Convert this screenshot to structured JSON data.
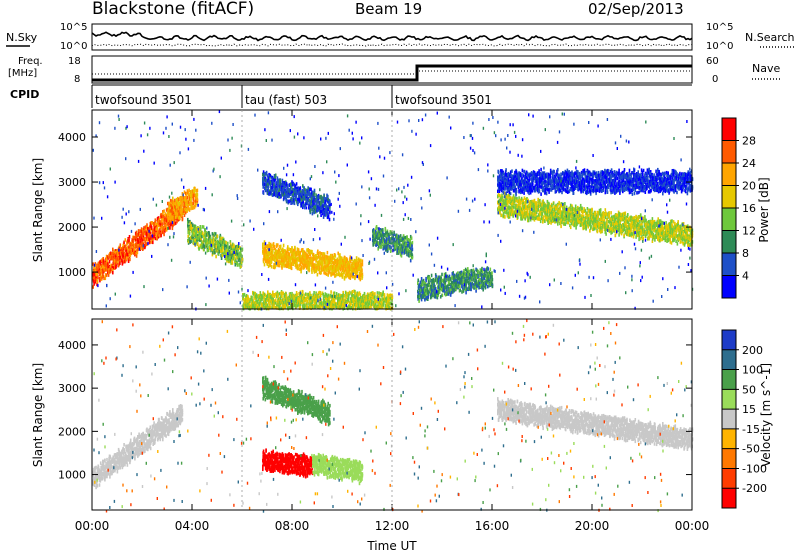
{
  "header": {
    "title": "Blackstone (fitACF)",
    "beam": "Beam 19",
    "date": "02/Sep/2013"
  },
  "side_labels": {
    "nsky": "N.Sky",
    "nsearch": "N.Search",
    "freq_line1": "Freq.",
    "freq_line2": "[MHz]",
    "nave": "Nave",
    "cpid": "CPID"
  },
  "noise_panel": {
    "left_ticks": [
      "10^5",
      "10^0"
    ],
    "right_ticks": [
      "10^5",
      "10^0"
    ]
  },
  "freq_panel": {
    "left_ticks": [
      "18",
      "8"
    ],
    "right_ticks": [
      "60",
      "0"
    ]
  },
  "cpid_segments": [
    {
      "label": "twofsound 3501",
      "start_hour": 0
    },
    {
      "label": "tau (fast) 503",
      "start_hour": 6
    },
    {
      "label": "twofsound 3501",
      "start_hour": 12
    }
  ],
  "x_axis": {
    "title": "Time UT",
    "ticks": [
      "00:00",
      "04:00",
      "08:00",
      "12:00",
      "16:00",
      "20:00",
      "00:00"
    ]
  },
  "power_panel": {
    "ylabel": "Slant Range [km]",
    "yticks": [
      "1000",
      "2000",
      "3000",
      "4000"
    ],
    "colorbar_title": "Power [dB]",
    "colorbar_ticks": [
      "28",
      "24",
      "20",
      "16",
      "12",
      "8",
      "4"
    ],
    "colors": [
      "#ff0000",
      "#ff5a00",
      "#ffa500",
      "#e6c800",
      "#6ec83c",
      "#2e8b57",
      "#1e50c8",
      "#0000ff"
    ]
  },
  "velocity_panel": {
    "ylabel": "Slant Range [km]",
    "yticks": [
      "1000",
      "2000",
      "3000",
      "4000"
    ],
    "colorbar_title": "Velocity [m s^-1]",
    "colorbar_ticks": [
      "200",
      "100",
      "50",
      "15",
      "-15",
      "-50",
      "-100",
      "-200"
    ],
    "colors": [
      "#1e3cc8",
      "#2e6e8e",
      "#4aa04a",
      "#9adc5a",
      "#c8c8c8",
      "#ffb400",
      "#ff7800",
      "#ff3c00",
      "#ff0000"
    ]
  },
  "chart_data": {
    "type": "heatmap",
    "x": {
      "label": "Time UT",
      "range_hours": [
        0,
        24
      ]
    },
    "y": {
      "label": "Slant Range [km]",
      "range_km": [
        180,
        4600
      ]
    },
    "power": {
      "scale_db": [
        0,
        32
      ],
      "features": [
        {
          "t_start": 0.0,
          "t_end": 3.6,
          "r_start": 900,
          "r_end": 2400,
          "db": 26
        },
        {
          "t_start": 3.0,
          "t_end": 4.2,
          "r_start": 2300,
          "r_end": 2700,
          "db": 22
        },
        {
          "t_start": 3.8,
          "t_end": 6.0,
          "r_start": 1900,
          "r_end": 1300,
          "db": 14
        },
        {
          "t_start": 6.8,
          "t_end": 10.8,
          "r_start": 1400,
          "r_end": 1050,
          "db": 20
        },
        {
          "t_start": 6.8,
          "t_end": 9.5,
          "r_start": 3000,
          "r_end": 2400,
          "db": 6
        },
        {
          "t_start": 11.2,
          "t_end": 12.8,
          "r_start": 1800,
          "r_end": 1500,
          "db": 10
        },
        {
          "t_start": 16.2,
          "t_end": 24.0,
          "r_start": 2500,
          "r_end": 1800,
          "db": 16
        },
        {
          "t_start": 16.2,
          "t_end": 24.0,
          "r_start": 3000,
          "r_end": 3000,
          "db": 4
        },
        {
          "t_start": 6.0,
          "t_end": 12.0,
          "r_start": 300,
          "r_end": 300,
          "db": 16
        },
        {
          "t_start": 13.0,
          "t_end": 16.0,
          "r_start": 600,
          "r_end": 900,
          "db": 10
        }
      ]
    },
    "velocity": {
      "scale_ms": [
        -200,
        200
      ],
      "features": [
        {
          "t_start": 0.0,
          "t_end": 3.6,
          "r_start": 900,
          "r_end": 2400,
          "v": -10
        },
        {
          "t_start": 6.8,
          "t_end": 8.8,
          "r_start": 1300,
          "r_end": 1200,
          "v": -220
        },
        {
          "t_start": 8.8,
          "t_end": 10.8,
          "r_start": 1250,
          "r_end": 1050,
          "v": 30
        },
        {
          "t_start": 16.2,
          "t_end": 24.0,
          "r_start": 2500,
          "r_end": 1800,
          "v": -5
        },
        {
          "t_start": 6.8,
          "t_end": 9.5,
          "r_start": 3000,
          "r_end": 2400,
          "v": 60
        }
      ]
    }
  }
}
